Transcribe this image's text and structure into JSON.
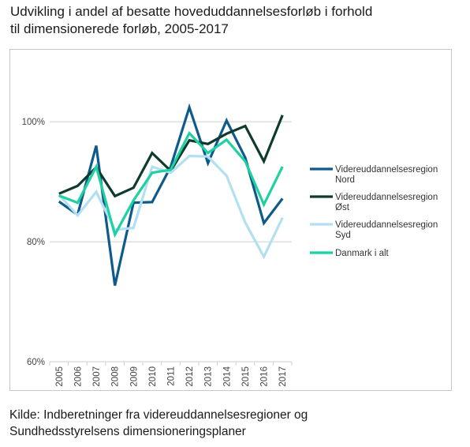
{
  "title_line1": "Udvikling i andel af besatte hoveduddannelsesforløb i forhold",
  "title_line2": "til dimensionerede forløb, 2005-2017",
  "source_line1": "Kilde: Indberetninger fra videreuddannelsesregioner og",
  "source_line2": "Sundhedsstyrelsens dimensioneringsplaner",
  "chart_data": {
    "type": "line",
    "title": "Udvikling i andel af besatte hoveduddannelsesforløb i forhold til dimensionerede forløb, 2005-2017",
    "x": [
      "2005",
      "2006",
      "2007",
      "2008",
      "2009",
      "2010",
      "2011",
      "2012",
      "2013",
      "2014",
      "2015",
      "2016",
      "2017"
    ],
    "y_ticks": [
      "60%",
      "80%",
      "100%"
    ],
    "ylim": [
      60,
      100
    ],
    "y_axis_max": 112,
    "grid": "horizontal",
    "legend_position": "right",
    "series": [
      {
        "name_lines": [
          "Videreuddannelsesregion",
          "Nord"
        ],
        "color": "#0e5a8a",
        "values": [
          86.7,
          84.5,
          96.0,
          72.7,
          86.5,
          86.6,
          92.5,
          102.4,
          93.1,
          100.2,
          94.0,
          83.1,
          87.2
        ]
      },
      {
        "name_lines": [
          "Videreuddannelsesregion",
          "Øst"
        ],
        "color": "#0e3b2e",
        "values": [
          88.0,
          89.3,
          92.4,
          87.6,
          89.0,
          94.8,
          91.8,
          96.9,
          96.3,
          98.0,
          99.3,
          93.4,
          101.1
        ]
      },
      {
        "name_lines": [
          "Videreuddannelsesregion",
          "Syd"
        ],
        "color": "#b3dff2",
        "values": [
          87.8,
          84.4,
          88.3,
          82.0,
          82.3,
          92.5,
          91.5,
          94.3,
          94.2,
          91.0,
          83.2,
          77.5,
          84.0
        ]
      },
      {
        "name_lines": [
          "Danmark i alt"
        ],
        "color": "#1fd1a1",
        "values": [
          87.7,
          86.5,
          92.5,
          81.2,
          86.9,
          91.5,
          92.0,
          98.1,
          94.8,
          97.0,
          93.4,
          86.2,
          92.5
        ]
      }
    ]
  }
}
